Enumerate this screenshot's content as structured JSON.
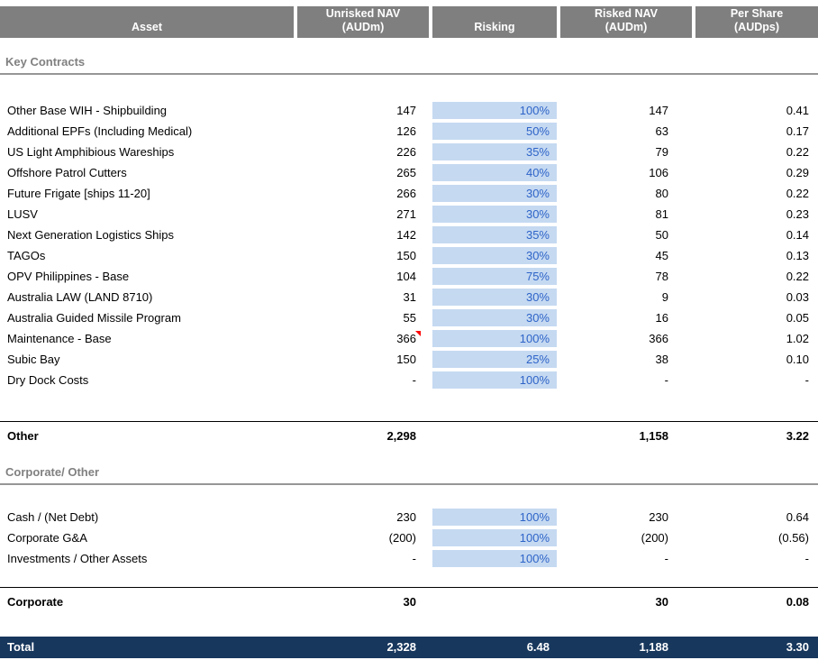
{
  "header": {
    "columns": [
      {
        "line1": "Asset",
        "line2": ""
      },
      {
        "line1": "Unrisked NAV",
        "line2": "(AUDm)"
      },
      {
        "line1": "Risking",
        "line2": ""
      },
      {
        "line1": "Risked NAV",
        "line2": "(AUDm)"
      },
      {
        "line1": "Per Share",
        "line2": "(AUDps)"
      }
    ]
  },
  "sections": [
    {
      "title": "Key Contracts",
      "rows": [
        {
          "asset": "Other Base WIH - Shipbuilding",
          "unrisked": "147",
          "risking": "100%",
          "risked": "147",
          "per_share": "0.41"
        },
        {
          "asset": "Additional EPFs (Including Medical)",
          "unrisked": "126",
          "risking": "50%",
          "risked": "63",
          "per_share": "0.17"
        },
        {
          "asset": "US Light Amphibious Wareships",
          "unrisked": "226",
          "risking": "35%",
          "risked": "79",
          "per_share": "0.22"
        },
        {
          "asset": "Offshore Patrol Cutters",
          "unrisked": "265",
          "risking": "40%",
          "risked": "106",
          "per_share": "0.29"
        },
        {
          "asset": "Future Frigate [ships 11-20]",
          "unrisked": "266",
          "risking": "30%",
          "risked": "80",
          "per_share": "0.22"
        },
        {
          "asset": "LUSV",
          "unrisked": "271",
          "risking": "30%",
          "risked": "81",
          "per_share": "0.23"
        },
        {
          "asset": "Next Generation Logistics Ships",
          "unrisked": "142",
          "risking": "35%",
          "risked": "50",
          "per_share": "0.14"
        },
        {
          "asset": "TAGOs",
          "unrisked": "150",
          "risking": "30%",
          "risked": "45",
          "per_share": "0.13"
        },
        {
          "asset": "OPV Philippines - Base",
          "unrisked": "104",
          "risking": "75%",
          "risked": "78",
          "per_share": "0.22"
        },
        {
          "asset": "Australia LAW (LAND 8710)",
          "unrisked": "31",
          "risking": "30%",
          "risked": "9",
          "per_share": "0.03"
        },
        {
          "asset": "Australia Guided Missile Program",
          "unrisked": "55",
          "risking": "30%",
          "risked": "16",
          "per_share": "0.05"
        },
        {
          "asset": "Maintenance - Base",
          "unrisked": "366",
          "risking": "100%",
          "risked": "366",
          "per_share": "1.02",
          "comment_marker": true
        },
        {
          "asset": "Subic Bay",
          "unrisked": "150",
          "risking": "25%",
          "risked": "38",
          "per_share": "0.10"
        },
        {
          "asset": "Dry Dock Costs",
          "unrisked": "-",
          "risking": "100%",
          "risked": "-",
          "per_share": "-"
        }
      ],
      "subtotal": {
        "label": "Other",
        "unrisked": "2,298",
        "risking": "",
        "risked": "1,158",
        "per_share": "3.22"
      }
    },
    {
      "title": "Corporate/ Other",
      "rows": [
        {
          "asset": "Cash / (Net Debt)",
          "unrisked": "230",
          "risking": "100%",
          "risked": "230",
          "per_share": "0.64"
        },
        {
          "asset": "Corporate G&A",
          "unrisked": "(200)",
          "risking": "100%",
          "risked": "(200)",
          "per_share": "(0.56)"
        },
        {
          "asset": "Investments / Other Assets",
          "unrisked": "-",
          "risking": "100%",
          "risked": "-",
          "per_share": "-"
        }
      ],
      "subtotal": {
        "label": "Corporate",
        "unrisked": "30",
        "risking": "",
        "risked": "30",
        "per_share": "0.08"
      }
    }
  ],
  "total": {
    "label": "Total",
    "unrisked": "2,328",
    "risking": "6.48",
    "risked": "1,188",
    "per_share": "3.30"
  },
  "colors": {
    "header_bg": "#7f7f7f",
    "input_bg": "#c5d9f1",
    "input_text": "#2e64c8",
    "total_bg": "#17375d",
    "section_color": "#808080",
    "rule_color": "#969696",
    "marker": "#ff0000"
  }
}
